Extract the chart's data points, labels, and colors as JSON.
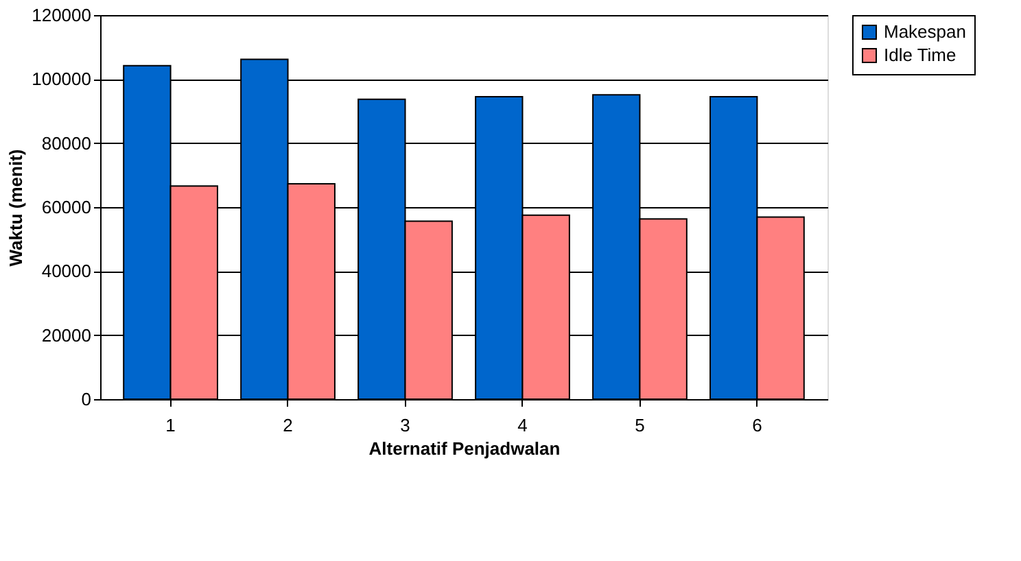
{
  "chart_data": {
    "type": "bar",
    "xlabel": "Alternatif Penjadwalan",
    "ylabel": "Waktu (menit)",
    "categories": [
      "1",
      "2",
      "3",
      "4",
      "5",
      "6"
    ],
    "series": [
      {
        "name": "Makespan",
        "color": "#0066cc",
        "values": [
          104200,
          106200,
          93700,
          94500,
          95100,
          94500
        ]
      },
      {
        "name": "Idle Time",
        "color": "#ff8080",
        "values": [
          66600,
          67300,
          55600,
          57500,
          56300,
          56900
        ]
      }
    ],
    "ylim": [
      0,
      120000
    ],
    "yticks": [
      0,
      20000,
      40000,
      60000,
      80000,
      100000,
      120000
    ],
    "grid": "y",
    "legend": "right"
  }
}
